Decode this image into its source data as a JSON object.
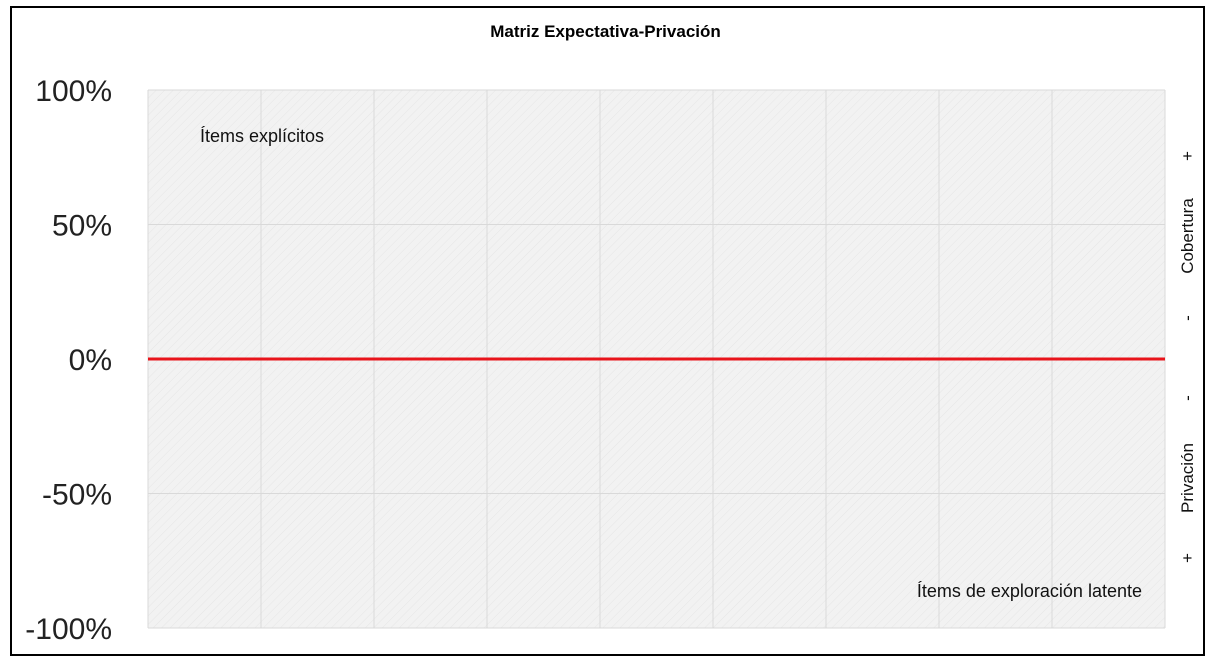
{
  "chart_data": {
    "type": "line",
    "title": "Matriz Expectativa-Privación",
    "ylim": [
      -100,
      100
    ],
    "y_ticks": [
      "100%",
      "50%",
      "0%",
      "-50%",
      "-100%"
    ],
    "y_tick_values": [
      100,
      50,
      0,
      -50,
      -100
    ],
    "grid": true,
    "x_gridlines": 9,
    "reference_line": {
      "value": 0,
      "color": "#e8141b"
    },
    "series": [],
    "annotations": {
      "top_left": "Ítems explícitos",
      "bottom_right": "Ítems de exploración latente"
    },
    "right_axis": {
      "upper_plus": "+",
      "upper_label": "Cobertura",
      "upper_minus": "-",
      "lower_minus": "-",
      "lower_label": "Privación",
      "lower_plus": "+"
    },
    "colors": {
      "plot_background": "#f2f2f2",
      "grid": "#d9d9d9",
      "zero_line": "#e8141b"
    }
  }
}
